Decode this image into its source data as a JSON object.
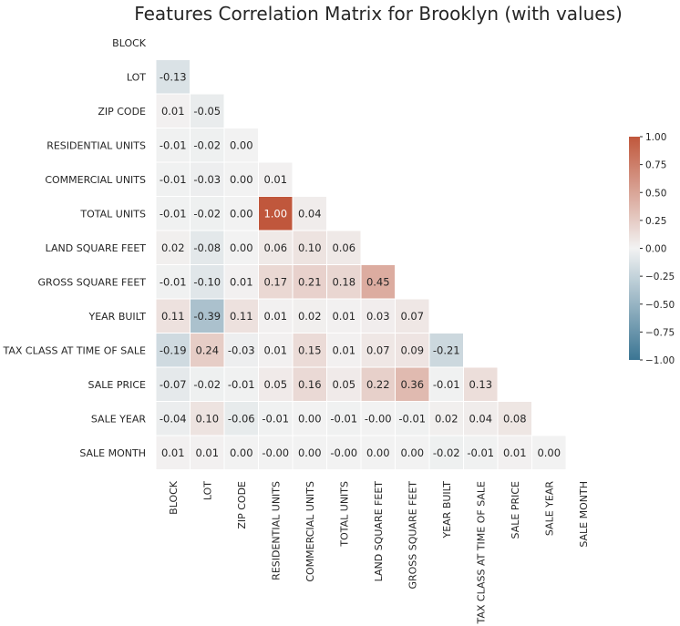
{
  "chart_data": {
    "type": "heatmap",
    "title": "Features Correlation Matrix for Brooklyn (with values)",
    "features": [
      "BLOCK",
      "LOT",
      "ZIP CODE",
      "RESIDENTIAL UNITS",
      "COMMERCIAL UNITS",
      "TOTAL UNITS",
      "LAND SQUARE FEET",
      "GROSS SQUARE FEET",
      "YEAR BUILT",
      "TAX CLASS AT TIME OF SALE",
      "SALE PRICE",
      "SALE YEAR",
      "SALE MONTH"
    ],
    "mask": "upper-triangle-and-diagonal",
    "values": [
      [],
      [
        "-0.13"
      ],
      [
        "0.01",
        "-0.05"
      ],
      [
        "-0.01",
        "-0.02",
        "0.00"
      ],
      [
        "-0.01",
        "-0.03",
        "0.00",
        "0.01"
      ],
      [
        "-0.01",
        "-0.02",
        "0.00",
        "1.00",
        "0.04"
      ],
      [
        "0.02",
        "-0.08",
        "0.00",
        "0.06",
        "0.10",
        "0.06"
      ],
      [
        "-0.01",
        "-0.10",
        "0.01",
        "0.17",
        "0.21",
        "0.18",
        "0.45"
      ],
      [
        "0.11",
        "-0.39",
        "0.11",
        "0.01",
        "0.02",
        "0.01",
        "0.03",
        "0.07"
      ],
      [
        "-0.19",
        "0.24",
        "-0.03",
        "0.01",
        "0.15",
        "0.01",
        "0.07",
        "0.09",
        "-0.21"
      ],
      [
        "-0.07",
        "-0.02",
        "-0.01",
        "0.05",
        "0.16",
        "0.05",
        "0.22",
        "0.36",
        "-0.01",
        "0.13"
      ],
      [
        "-0.04",
        "0.10",
        "-0.06",
        "-0.01",
        "0.00",
        "-0.01",
        "-0.00",
        "-0.01",
        "0.02",
        "0.04",
        "0.08"
      ],
      [
        "0.01",
        "0.01",
        "0.00",
        "-0.00",
        "0.00",
        "-0.00",
        "0.00",
        "0.00",
        "-0.02",
        "-0.01",
        "0.01",
        "0.00"
      ]
    ],
    "colorbar": {
      "range": [
        -1.0,
        1.0
      ],
      "ticks": [
        "1.00",
        "0.75",
        "0.50",
        "0.25",
        "0.00",
        "−0.25",
        "−0.50",
        "−0.75",
        "−1.00"
      ],
      "colors": {
        "negative": "#3b7593",
        "neutral": "#f2f2f2",
        "positive": "#c0573c"
      }
    }
  }
}
